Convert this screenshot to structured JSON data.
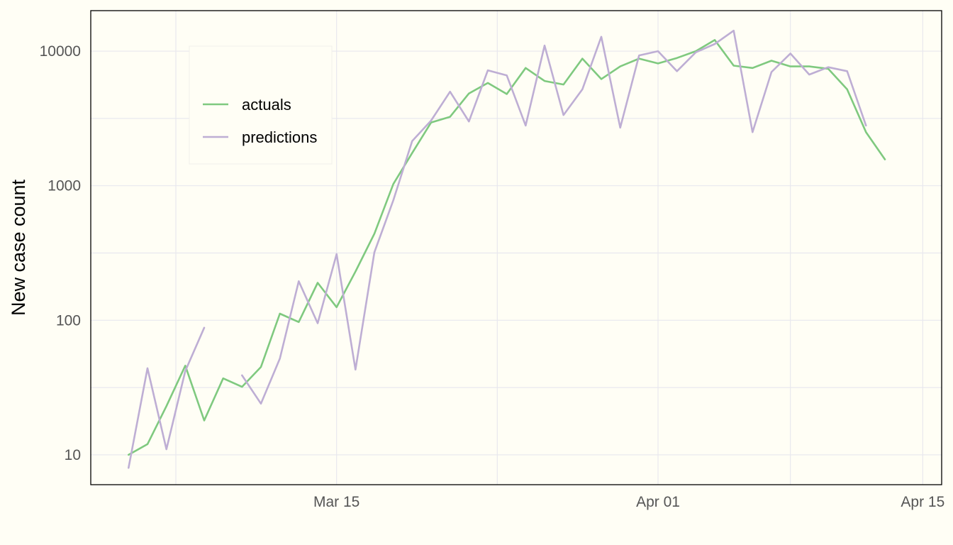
{
  "chart_data": {
    "type": "line",
    "ylabel": "New case count",
    "xlabel": "",
    "y_scale": "log",
    "ylim": [
      6,
      20000
    ],
    "xlim": [
      "2020-03-02",
      "2020-04-16"
    ],
    "x_ticks": [
      {
        "date": "2020-03-15",
        "label": "Mar 15"
      },
      {
        "date": "2020-04-01",
        "label": "Apr 01"
      },
      {
        "date": "2020-04-15",
        "label": "Apr 15"
      }
    ],
    "y_ticks": [
      {
        "value": 10,
        "label": "10"
      },
      {
        "value": 100,
        "label": "100"
      },
      {
        "value": 1000,
        "label": "1000"
      },
      {
        "value": 10000,
        "label": "10000"
      }
    ],
    "grid": true,
    "legend_position": "top-left",
    "series": [
      {
        "name": "actuals",
        "color": "#7fc97f",
        "points": [
          [
            "2020-03-04",
            10
          ],
          [
            "2020-03-05",
            12
          ],
          [
            "2020-03-06",
            23
          ],
          [
            "2020-03-07",
            46
          ],
          [
            "2020-03-08",
            18
          ],
          [
            "2020-03-09",
            37
          ],
          [
            "2020-03-10",
            32
          ],
          [
            "2020-03-11",
            45
          ],
          [
            "2020-03-12",
            112
          ],
          [
            "2020-03-13",
            97
          ],
          [
            "2020-03-14",
            190
          ],
          [
            "2020-03-15",
            125
          ],
          [
            "2020-03-16",
            230
          ],
          [
            "2020-03-17",
            440
          ],
          [
            "2020-03-18",
            1030
          ],
          [
            "2020-03-19",
            1750
          ],
          [
            "2020-03-20",
            2950
          ],
          [
            "2020-03-21",
            3250
          ],
          [
            "2020-03-22",
            4850
          ],
          [
            "2020-03-23",
            5800
          ],
          [
            "2020-03-24",
            4800
          ],
          [
            "2020-03-25",
            7500
          ],
          [
            "2020-03-26",
            6000
          ],
          [
            "2020-03-27",
            5650
          ],
          [
            "2020-03-28",
            8800
          ],
          [
            "2020-03-29",
            6200
          ],
          [
            "2020-03-30",
            7700
          ],
          [
            "2020-03-31",
            8800
          ],
          [
            "2020-04-01",
            8100
          ],
          [
            "2020-04-02",
            8900
          ],
          [
            "2020-04-03",
            10000
          ],
          [
            "2020-04-04",
            12100
          ],
          [
            "2020-04-05",
            7800
          ],
          [
            "2020-04-06",
            7500
          ],
          [
            "2020-04-07",
            8500
          ],
          [
            "2020-04-08",
            7700
          ],
          [
            "2020-04-09",
            7700
          ],
          [
            "2020-04-10",
            7400
          ],
          [
            "2020-04-11",
            5200
          ],
          [
            "2020-04-12",
            2500
          ],
          [
            "2020-04-13",
            1570
          ]
        ]
      },
      {
        "name": "predictions",
        "color": "#beaed4",
        "points": [
          [
            "2020-03-04",
            8
          ],
          [
            "2020-03-05",
            44
          ],
          [
            "2020-03-06",
            11
          ],
          [
            "2020-03-07",
            42
          ],
          [
            "2020-03-08",
            88
          ],
          null,
          [
            "2020-03-10",
            39
          ],
          [
            "2020-03-11",
            24
          ],
          [
            "2020-03-12",
            52
          ],
          [
            "2020-03-13",
            195
          ],
          [
            "2020-03-14",
            95
          ],
          [
            "2020-03-15",
            310
          ],
          [
            "2020-03-16",
            43
          ],
          [
            "2020-03-17",
            320
          ],
          [
            "2020-03-18",
            780
          ],
          [
            "2020-03-19",
            2150
          ],
          [
            "2020-03-20",
            3050
          ],
          [
            "2020-03-21",
            5000
          ],
          [
            "2020-03-22",
            3000
          ],
          [
            "2020-03-23",
            7200
          ],
          [
            "2020-03-24",
            6600
          ],
          [
            "2020-03-25",
            2800
          ],
          [
            "2020-03-26",
            11000
          ],
          [
            "2020-03-27",
            3350
          ],
          [
            "2020-03-28",
            5200
          ],
          [
            "2020-03-29",
            12800
          ],
          [
            "2020-03-30",
            2700
          ],
          [
            "2020-03-31",
            9300
          ],
          [
            "2020-04-01",
            10000
          ],
          [
            "2020-04-02",
            7100
          ],
          [
            "2020-04-03",
            9800
          ],
          [
            "2020-04-04",
            11300
          ],
          [
            "2020-04-05",
            14200
          ],
          [
            "2020-04-06",
            2500
          ],
          [
            "2020-04-07",
            7000
          ],
          [
            "2020-04-08",
            9600
          ],
          [
            "2020-04-09",
            6700
          ],
          [
            "2020-04-10",
            7600
          ],
          [
            "2020-04-11",
            7100
          ],
          [
            "2020-04-12",
            2800
          ]
        ]
      }
    ]
  },
  "colors": {
    "background": "#fffef5",
    "grid": "#e8e8ee",
    "axis": "#000000",
    "tick_text": "#555555"
  }
}
